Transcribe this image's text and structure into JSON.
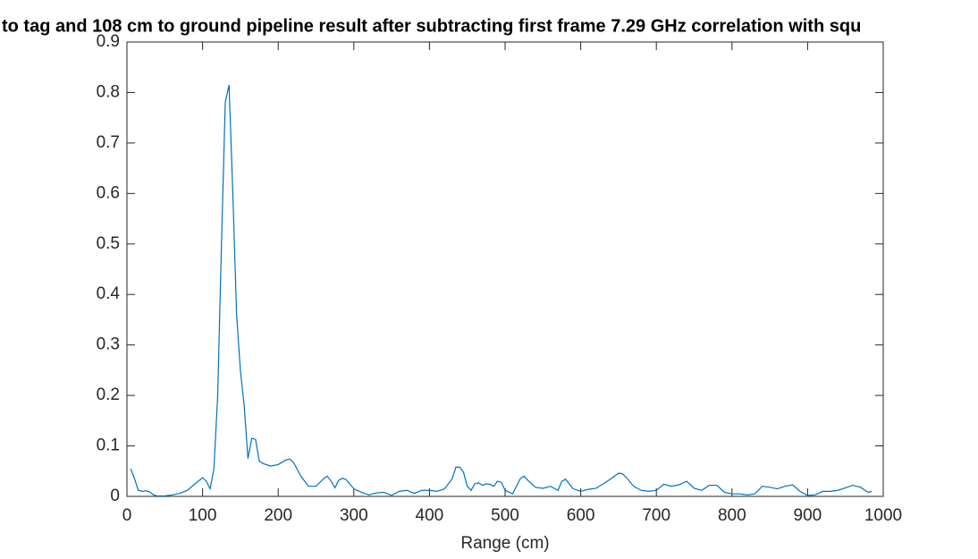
{
  "chart_data": {
    "type": "line",
    "title": "to tag and 108 cm to ground pipeline result after subtracting first frame 7.29 GHz correlation with squ",
    "xlabel": "Range (cm)",
    "color": "#0072bd",
    "x": [
      5,
      10,
      15,
      20,
      25,
      30,
      35,
      40,
      50,
      60,
      70,
      80,
      90,
      100,
      105,
      110,
      115,
      120,
      125,
      130,
      135,
      140,
      145,
      150,
      155,
      160,
      165,
      170,
      175,
      180,
      190,
      200,
      210,
      215,
      220,
      230,
      240,
      250,
      260,
      265,
      270,
      275,
      280,
      285,
      290,
      300,
      310,
      320,
      330,
      340,
      350,
      360,
      370,
      380,
      390,
      400,
      410,
      420,
      430,
      435,
      440,
      445,
      450,
      455,
      460,
      465,
      470,
      475,
      480,
      485,
      490,
      495,
      500,
      510,
      520,
      525,
      530,
      540,
      550,
      560,
      570,
      575,
      580,
      590,
      600,
      610,
      620,
      630,
      640,
      650,
      655,
      660,
      670,
      680,
      690,
      700,
      710,
      720,
      730,
      740,
      750,
      760,
      770,
      780,
      790,
      800,
      810,
      820,
      830,
      840,
      850,
      860,
      870,
      880,
      890,
      900,
      910,
      920,
      930,
      940,
      950,
      960,
      970,
      980,
      985
    ],
    "values": [
      0.055,
      0.035,
      0.012,
      0.01,
      0.011,
      0.009,
      0.003,
      0.001,
      0.001,
      0.003,
      0.006,
      0.012,
      0.025,
      0.037,
      0.03,
      0.015,
      0.055,
      0.2,
      0.5,
      0.78,
      0.815,
      0.6,
      0.36,
      0.25,
      0.18,
      0.075,
      0.115,
      0.113,
      0.07,
      0.065,
      0.06,
      0.063,
      0.072,
      0.074,
      0.068,
      0.04,
      0.02,
      0.02,
      0.035,
      0.04,
      0.03,
      0.017,
      0.032,
      0.036,
      0.033,
      0.015,
      0.008,
      0.003,
      0.007,
      0.008,
      0.002,
      0.01,
      0.012,
      0.006,
      0.012,
      0.012,
      0.01,
      0.015,
      0.035,
      0.058,
      0.058,
      0.048,
      0.02,
      0.012,
      0.025,
      0.027,
      0.022,
      0.025,
      0.024,
      0.02,
      0.03,
      0.028,
      0.012,
      0.005,
      0.035,
      0.04,
      0.032,
      0.018,
      0.016,
      0.02,
      0.012,
      0.03,
      0.034,
      0.015,
      0.01,
      0.014,
      0.016,
      0.025,
      0.035,
      0.046,
      0.045,
      0.038,
      0.02,
      0.012,
      0.01,
      0.012,
      0.024,
      0.02,
      0.023,
      0.03,
      0.016,
      0.012,
      0.022,
      0.022,
      0.008,
      0.005,
      0.005,
      0.003,
      0.005,
      0.02,
      0.018,
      0.015,
      0.02,
      0.023,
      0.01,
      0.002,
      0.003,
      0.01,
      0.01,
      0.012,
      0.017,
      0.022,
      0.018,
      0.008,
      0.01
    ],
    "xlim": [
      0,
      1000
    ],
    "xticks": [
      0,
      100,
      200,
      300,
      400,
      500,
      600,
      700,
      800,
      900,
      1000
    ],
    "ylim": [
      0,
      0.9
    ],
    "yticks": [
      0,
      0.1,
      0.2,
      0.3,
      0.4,
      0.5,
      0.6,
      0.7,
      0.8,
      0.9
    ]
  }
}
